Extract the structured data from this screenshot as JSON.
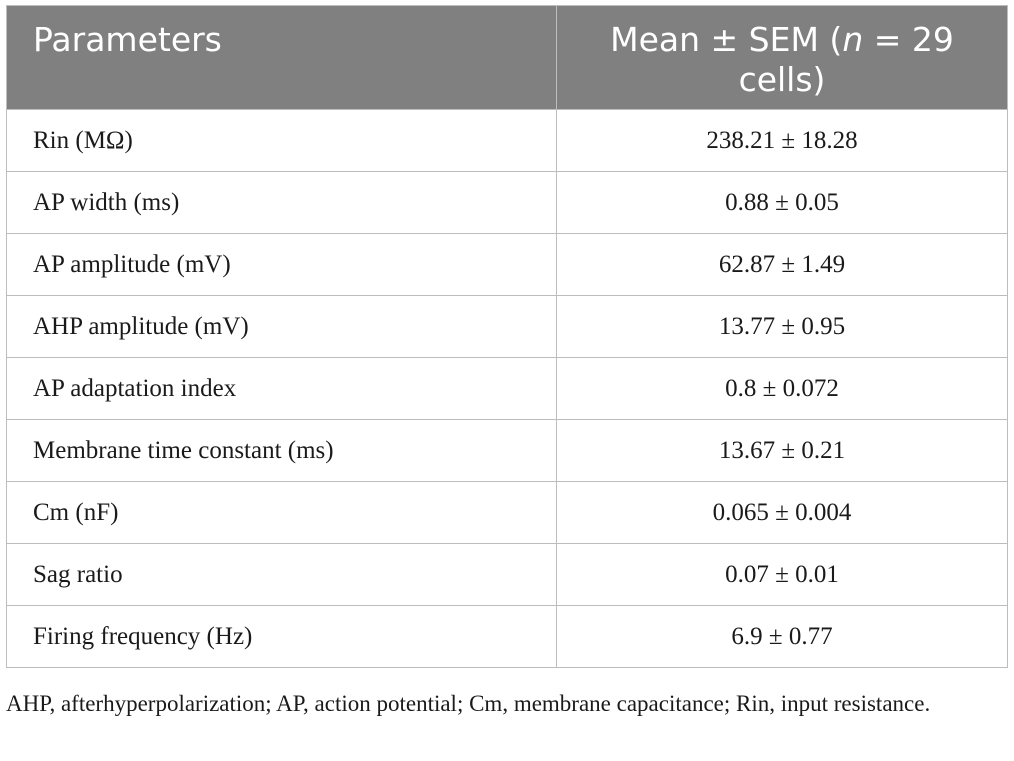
{
  "table": {
    "headers": {
      "parameter": "Parameters",
      "value_prefix": "Mean ± SEM (",
      "value_n": "n",
      "value_suffix": " = 29 cells)"
    },
    "rows": [
      {
        "parameter": "Rin (MΩ)",
        "value": "238.21 ± 18.28"
      },
      {
        "parameter": "AP width (ms)",
        "value": "0.88 ± 0.05"
      },
      {
        "parameter": "AP amplitude (mV)",
        "value": "62.87 ± 1.49"
      },
      {
        "parameter": "AHP amplitude (mV)",
        "value": "13.77 ± 0.95"
      },
      {
        "parameter": "AP adaptation index",
        "value": "0.8 ± 0.072"
      },
      {
        "parameter": "Membrane time constant (ms)",
        "value": "13.67 ± 0.21"
      },
      {
        "parameter": "Cm (nF)",
        "value": "0.065 ± 0.004"
      },
      {
        "parameter": "Sag ratio",
        "value": "0.07 ± 0.01"
      },
      {
        "parameter": "Firing frequency (Hz)",
        "value": "6.9 ± 0.77"
      }
    ]
  },
  "footnote": "AHP, afterhyperpolarization; AP, action potential; Cm, membrane capacitance; Rin, input resistance."
}
